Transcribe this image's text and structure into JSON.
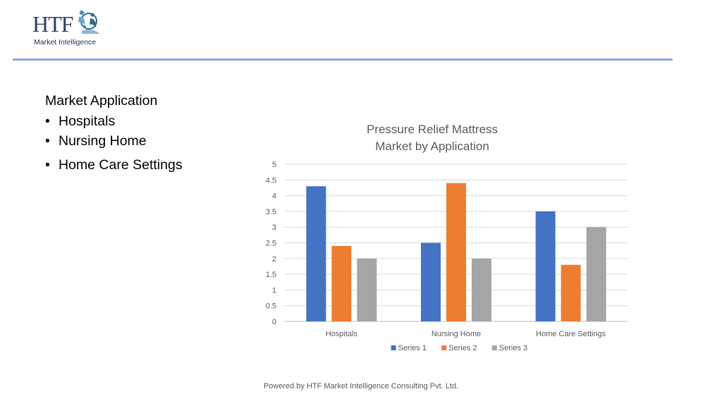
{
  "logo": {
    "brand": "HTF",
    "tagline": "Market Intelligence"
  },
  "content": {
    "heading": "Market Application",
    "bullets": [
      "Hospitals",
      "Nursing Home",
      "Home Care Settings"
    ]
  },
  "footer": {
    "text": "Powered by HTF Market Intelligence Consulting Pvt. Ltd."
  },
  "colors": {
    "rule": "#8eaadb",
    "series": [
      "#4472c4",
      "#ed7d31",
      "#a5a5a5"
    ]
  },
  "chart_data": {
    "type": "bar",
    "title_lines": [
      "Pressure Relief Mattress",
      "Market by Application"
    ],
    "categories": [
      "Hospitals",
      "Nursing Home",
      "Home Care Settings"
    ],
    "series": [
      {
        "name": "Series 1",
        "values": [
          4.3,
          2.5,
          3.5
        ]
      },
      {
        "name": "Series 2",
        "values": [
          2.4,
          4.4,
          1.8
        ]
      },
      {
        "name": "Series 3",
        "values": [
          2,
          2,
          3
        ]
      }
    ],
    "ylim": [
      0,
      5
    ],
    "yticks": [
      "0",
      "0.5",
      "1",
      "1.5",
      "2",
      "2.5",
      "3",
      "3.5",
      "4",
      "4.5",
      "5"
    ],
    "grid": true,
    "legend": "bottom"
  }
}
